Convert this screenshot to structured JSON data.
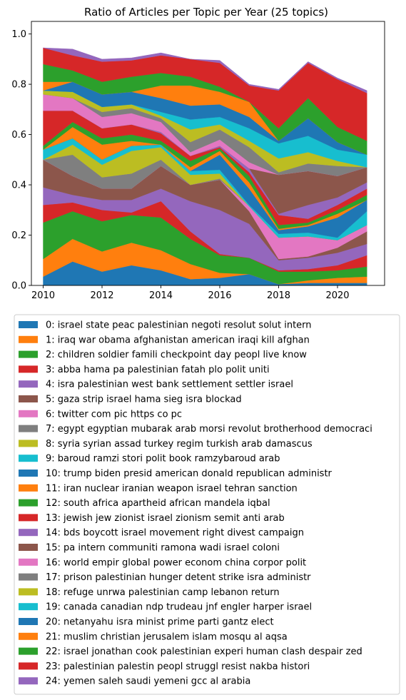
{
  "chart_data": {
    "type": "area",
    "title": "Ratio of Articles per Topic per Year (25 topics)",
    "xlabel": "",
    "ylabel": "",
    "xlim": [
      2009.6,
      2021.6
    ],
    "ylim": [
      0,
      1.05
    ],
    "x_ticks": [
      "2010",
      "2012",
      "2014",
      "2016",
      "2018",
      "2020"
    ],
    "y_ticks": [
      "0.0",
      "0.2",
      "0.4",
      "0.6",
      "0.8",
      "1.0"
    ],
    "legend_placement": "below",
    "x": [
      2010,
      2011,
      2012,
      2013,
      2014,
      2015,
      2016,
      2017,
      2018,
      2019,
      2020,
      2021
    ],
    "series": [
      {
        "name": "0: israel state peac palestinian negoti resolut solut intern",
        "color": "#1f77b4",
        "values": [
          0.035,
          0.095,
          0.055,
          0.08,
          0.06,
          0.025,
          0.03,
          0.045,
          0.005,
          0.01,
          0.01,
          0.01
        ]
      },
      {
        "name": "1: iraq war obama afghanistan american iraqi kill afghan",
        "color": "#ff7f0e",
        "values": [
          0.07,
          0.09,
          0.08,
          0.09,
          0.08,
          0.06,
          0.02,
          0.0,
          0.0,
          0.01,
          0.02,
          0.025
        ]
      },
      {
        "name": "2: children soldier famili checkpoint day peopl live know",
        "color": "#2ca02c",
        "values": [
          0.145,
          0.11,
          0.12,
          0.11,
          0.13,
          0.1,
          0.07,
          0.065,
          0.05,
          0.035,
          0.03,
          0.04
        ]
      },
      {
        "name": "3: abba hama pa palestinian fatah plo polit uniti",
        "color": "#d62728",
        "values": [
          0.07,
          0.035,
          0.045,
          0.01,
          0.065,
          0.03,
          0.005,
          0.0,
          0.005,
          0.01,
          0.02,
          0.045
        ]
      },
      {
        "name": "4: isra palestinian west bank settlement settler israel",
        "color": "#9467bd",
        "values": [
          0.07,
          0.03,
          0.04,
          0.05,
          0.05,
          0.12,
          0.175,
          0.135,
          0.04,
          0.045,
          0.05,
          0.045
        ]
      },
      {
        "name": "5: gaza strip israel hama sieg isra blockad",
        "color": "#8c564b",
        "values": [
          0.11,
          0.075,
          0.045,
          0.045,
          0.09,
          0.065,
          0.12,
          0.05,
          0.005,
          0.005,
          0.02,
          0.05
        ]
      },
      {
        "name": "6: twitter com pic https co pc",
        "color": "#e377c2",
        "values": [
          0.0,
          0.0,
          0.0,
          0.0,
          0.0,
          0.0,
          0.0,
          0.02,
          0.085,
          0.08,
          0.03,
          0.025
        ]
      },
      {
        "name": "7: egypt egyptian mubarak arab morsi revolut brotherhood democraci",
        "color": "#7f7f7f",
        "values": [
          0.0,
          0.085,
          0.045,
          0.06,
          0.025,
          0.0,
          0.005,
          0.0,
          0.0,
          0.0,
          0.0,
          0.0
        ]
      },
      {
        "name": "8: syria syrian assad turkey regim turkish arab damascus",
        "color": "#bcbd22",
        "values": [
          0.0,
          0.04,
          0.05,
          0.09,
          0.05,
          0.04,
          0.02,
          0.0,
          0.0,
          0.0,
          0.0,
          0.0
        ]
      },
      {
        "name": "9: baroud ramzi stori polit book ramzybaroud arab",
        "color": "#17becf",
        "values": [
          0.04,
          0.025,
          0.02,
          0.02,
          0.01,
          0.015,
          0.015,
          0.005,
          0.015,
          0.015,
          0.01,
          0.055
        ]
      },
      {
        "name": "10: trump biden presid american donald republican administr",
        "color": "#1f77b4",
        "values": [
          0.0,
          0.0,
          0.0,
          0.0,
          0.0,
          0.0,
          0.06,
          0.065,
          0.015,
          0.025,
          0.08,
          0.045
        ]
      },
      {
        "name": "11: iran nuclear iranian weapon israel tehran sanction",
        "color": "#ff7f0e",
        "values": [
          0.0,
          0.045,
          0.06,
          0.02,
          0.0,
          0.015,
          0.015,
          0.025,
          0.005,
          0.005,
          0.015,
          0.0
        ]
      },
      {
        "name": "12: south africa apartheid african mandela iqbal",
        "color": "#2ca02c",
        "values": [
          0.015,
          0.02,
          0.025,
          0.025,
          0.015,
          0.025,
          0.01,
          0.025,
          0.015,
          0.01,
          0.015,
          0.02
        ]
      },
      {
        "name": "13: jewish jew zionist israel zionism semit anti arab",
        "color": "#d62728",
        "values": [
          0.14,
          0.045,
          0.04,
          0.04,
          0.03,
          0.02,
          0.005,
          0.015,
          0.04,
          0.015,
          0.02,
          0.025
        ]
      },
      {
        "name": "14: bds boycott israel movement right divest campaign",
        "color": "#9467bd",
        "values": [
          0.0,
          0.0,
          0.0,
          0.0,
          0.005,
          0.0,
          0.005,
          0.015,
          0.005,
          0.055,
          0.03,
          0.025
        ]
      },
      {
        "name": "15: pa intern communiti ramona wadi israel coloni",
        "color": "#8c564b",
        "values": [
          0.0,
          0.0,
          0.0,
          0.0,
          0.0,
          0.0,
          0.0,
          0.0,
          0.155,
          0.135,
          0.085,
          0.06
        ]
      },
      {
        "name": "16: world empir global power econom china corpor polit",
        "color": "#e377c2",
        "values": [
          0.065,
          0.05,
          0.045,
          0.045,
          0.04,
          0.015,
          0.025,
          0.025,
          0.0,
          0.0,
          0.0,
          0.0
        ]
      },
      {
        "name": "17: prison palestinian hunger detent strike isra administr",
        "color": "#7f7f7f",
        "values": [
          0.0,
          0.0,
          0.02,
          0.02,
          0.015,
          0.04,
          0.04,
          0.06,
          0.01,
          0.03,
          0.04,
          0.0
        ]
      },
      {
        "name": "18: refuge unrwa palestinian camp lebanon return",
        "color": "#bcbd22",
        "values": [
          0.015,
          0.025,
          0.02,
          0.015,
          0.01,
          0.05,
          0.02,
          0.025,
          0.055,
          0.045,
          0.02,
          0.0
        ]
      },
      {
        "name": "19: canada canadian ndp trudeau jnf engler harper israel",
        "color": "#17becf",
        "values": [
          0.0,
          0.0,
          0.0,
          0.0,
          0.015,
          0.04,
          0.03,
          0.05,
          0.06,
          0.065,
          0.045,
          0.05
        ]
      },
      {
        "name": "20: netanyahu isra minist prime parti gantz elect",
        "color": "#1f77b4",
        "values": [
          0.0,
          0.04,
          0.05,
          0.05,
          0.055,
          0.055,
          0.05,
          0.045,
          0.01,
          0.07,
          0.03,
          0.0
        ]
      },
      {
        "name": "21: muslim christian jerusalem islam mosqu al aqsa",
        "color": "#ff7f0e",
        "values": [
          0.035,
          0.0,
          0.0,
          0.0,
          0.05,
          0.08,
          0.05,
          0.06,
          0.0,
          0.0,
          0.0,
          0.0
        ]
      },
      {
        "name": "22: israel jonathan cook palestinian experi human clash despair zed",
        "color": "#2ca02c",
        "values": [
          0.07,
          0.045,
          0.05,
          0.06,
          0.05,
          0.035,
          0.02,
          0.0,
          0.05,
          0.08,
          0.06,
          0.055
        ]
      },
      {
        "name": "23: palestinian palestin peopl struggl resist nakba histori",
        "color": "#d62728",
        "values": [
          0.065,
          0.06,
          0.08,
          0.065,
          0.07,
          0.07,
          0.095,
          0.065,
          0.15,
          0.14,
          0.19,
          0.19
        ]
      },
      {
        "name": "24: yemen saleh saudi yemeni gcc al arabia",
        "color": "#9467bd",
        "values": [
          0.0,
          0.025,
          0.01,
          0.01,
          0.01,
          0.0,
          0.01,
          0.005,
          0.005,
          0.005,
          0.005,
          0.01
        ]
      }
    ]
  }
}
